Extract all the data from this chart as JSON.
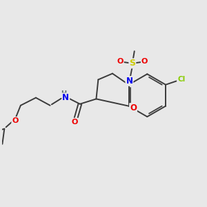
{
  "bg_color": "#e8e8e8",
  "atom_colors": {
    "C": "#3a3a3a",
    "N": "#0000ee",
    "O": "#ee0000",
    "S": "#cccc00",
    "Cl": "#88cc00",
    "H": "#607070"
  },
  "bond_color": "#3a3a3a",
  "bond_lw": 1.4
}
